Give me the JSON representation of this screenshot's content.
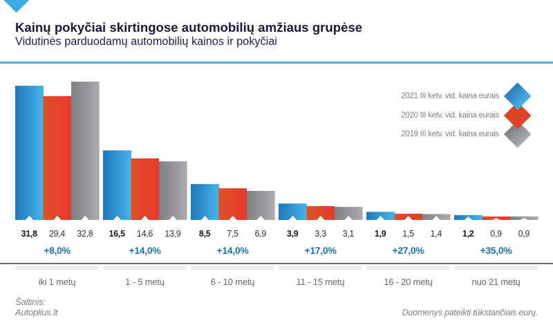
{
  "header": {
    "title": "Kainų pokyčiai skirtingose automobilių amžiaus grupėse",
    "subtitle": "Vidutinės parduodamų automobilių kainos ir pokyčiai"
  },
  "legend": {
    "items": [
      {
        "label": "2021 III ketv. vid. kaina eurais",
        "color_dark": "#2d7cbb",
        "color_light": "#44b4e8"
      },
      {
        "label": "2020 III ketv. vid. kaina eurais",
        "color_dark": "#d44420",
        "color_light": "#e8402b"
      },
      {
        "label": "2019 III ketv. vid. kaina eurais",
        "color_dark": "#7f8083",
        "color_light": "#a9abae"
      }
    ]
  },
  "chart_data": {
    "type": "bar",
    "categories": [
      "iki 1 metų",
      "1 - 5 metų",
      "6 - 10 metų",
      "11 - 15 metų",
      "16 - 20 metų",
      "nuo 21 metų"
    ],
    "series": [
      {
        "name": "2021 III ketv. vid. kaina eurais",
        "values": [
          31.8,
          16.5,
          8.5,
          3.9,
          1.9,
          1.2
        ],
        "labels": [
          "31,8",
          "16,5",
          "8,5",
          "3,9",
          "1,9",
          "1,2"
        ],
        "gradient": [
          "#1e78bd",
          "#45b5e9"
        ]
      },
      {
        "name": "2020 III ketv. vid. kaina eurais",
        "values": [
          29.4,
          14.6,
          7.5,
          3.3,
          1.5,
          0.9
        ],
        "labels": [
          "29,4",
          "14,6",
          "7,5",
          "3,3",
          "1,5",
          "0,9"
        ],
        "gradient": [
          "#dd5126",
          "#e9392c"
        ]
      },
      {
        "name": "2019 III ketv. vid. kaina eurais",
        "values": [
          32.8,
          13.9,
          6.9,
          3.1,
          1.4,
          0.9
        ],
        "labels": [
          "32,8",
          "13,9",
          "6,9",
          "3,1",
          "1,4",
          "0,9"
        ],
        "gradient": [
          "#7f8083",
          "#abacaf"
        ]
      }
    ],
    "changes": [
      "+8,0%",
      "+14,0%",
      "+14,0%",
      "+17,0%",
      "+27,0%",
      "+35,0%"
    ],
    "title": "Kainų pokyčiai skirtingose automobilių amžiaus grupėse",
    "xlabel": "",
    "ylabel": "",
    "ylim": [
      0,
      33
    ],
    "grid": false,
    "legend_position": "right",
    "unit_note": "tūkstančiais eurų"
  },
  "footer": {
    "source_label": "Šaltinis:",
    "source_name": "Autoplius.lt",
    "note": "Duomenys pateikti tūkstančiais eurų."
  },
  "colors": {
    "accent_blue": "#3aadde",
    "header_rule": "#47b4e5",
    "title": "#1c173f",
    "pct": "#1a74a4",
    "axis_line": "#6a6a6a",
    "band": "#ededed"
  }
}
